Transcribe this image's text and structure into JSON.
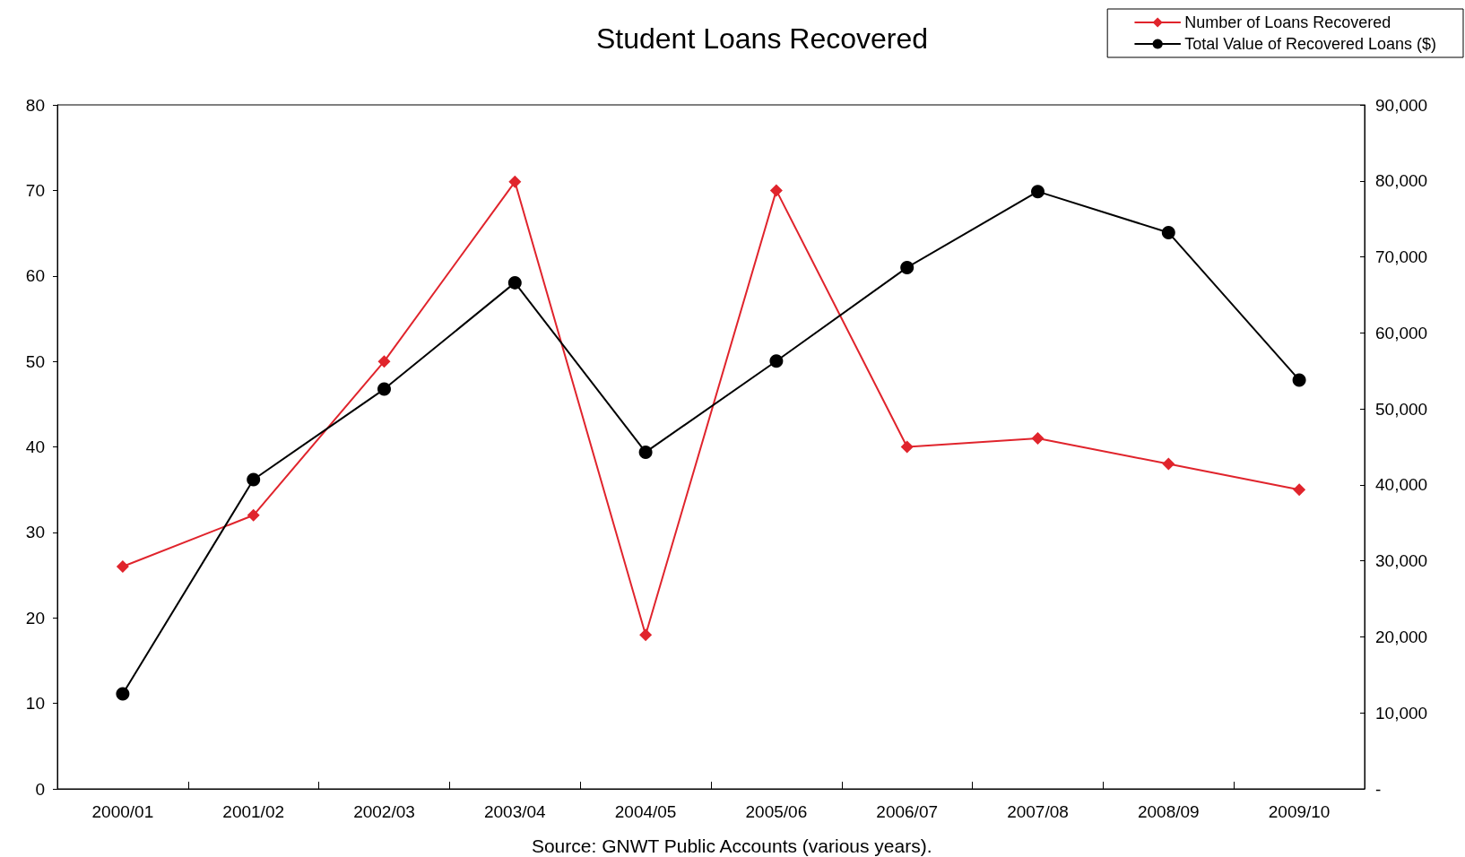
{
  "chart_data": {
    "type": "line",
    "title": "Student Loans Recovered",
    "categories": [
      "2000/01",
      "2001/02",
      "2002/03",
      "2003/04",
      "2004/05",
      "2005/06",
      "2006/07",
      "2007/08",
      "2008/09",
      "2009/10"
    ],
    "series": [
      {
        "name": "Number of Loans Recovered",
        "color": "#e0242c",
        "marker": "diamond",
        "values": [
          26,
          32,
          50,
          71,
          18,
          70,
          40,
          41,
          38,
          35
        ]
      },
      {
        "name": "Total Value of Recovered Loans ($)",
        "color": "#000000",
        "marker": "circle",
        "axis": "y2",
        "values": [
          12500,
          40700,
          52600,
          66600,
          44300,
          56300,
          68600,
          78600,
          73200,
          53800
        ]
      }
    ],
    "ylim": [
      0,
      80
    ],
    "yticks": [
      0,
      10,
      20,
      30,
      40,
      50,
      60,
      70,
      80
    ],
    "y2lim": [
      0,
      90000
    ],
    "y2ticks": [
      {
        "value": 0,
        "label": "-"
      },
      {
        "value": 10000,
        "label": "10,000"
      },
      {
        "value": 20000,
        "label": "20,000"
      },
      {
        "value": 30000,
        "label": "30,000"
      },
      {
        "value": 40000,
        "label": "40,000"
      },
      {
        "value": 50000,
        "label": "50,000"
      },
      {
        "value": 60000,
        "label": "60,000"
      },
      {
        "value": 70000,
        "label": "70,000"
      },
      {
        "value": 80000,
        "label": "80,000"
      },
      {
        "value": 90000,
        "label": "90,000"
      }
    ],
    "grid": false,
    "legend": "top right",
    "line_style": "solid",
    "annotations": [
      "Source: GNWT Public Accounts (various years)."
    ]
  }
}
